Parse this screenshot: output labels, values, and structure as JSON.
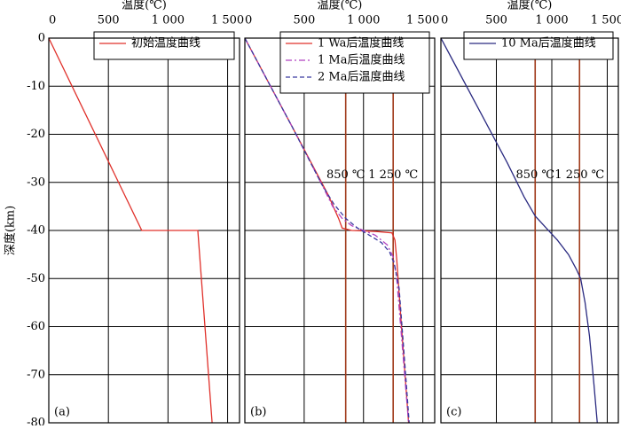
{
  "chart_data": [
    {
      "type": "line",
      "xlabel": "温度(℃)",
      "ylabel": "深度(km)",
      "panel_label": "(a)",
      "xlim": [
        0,
        1600
      ],
      "ylim": [
        -80,
        0
      ],
      "xticks": [
        0,
        500,
        {
          "value": 1000,
          "label": "1 000"
        },
        {
          "value": 1500,
          "label": "1 500"
        }
      ],
      "yticks": [
        0,
        -10,
        -20,
        -30,
        -40,
        -50,
        -60,
        -70,
        -80
      ],
      "grid": true,
      "legend": "top-right",
      "series": [
        {
          "name": "初始温度曲线",
          "color": "#e0302a",
          "dash": "solid",
          "x": [
            0,
            780,
            1250,
            1370
          ],
          "values": [
            0,
            -40,
            -40,
            -80
          ]
        }
      ]
    },
    {
      "type": "line",
      "xlabel": "温度(℃)",
      "panel_label": "(b)",
      "xlim": [
        0,
        1600
      ],
      "ylim": [
        -80,
        0
      ],
      "xticks": [
        0,
        500,
        {
          "value": 1000,
          "label": "1 000"
        },
        {
          "value": 1500,
          "label": "1 500"
        }
      ],
      "yticks": [
        0,
        -10,
        -20,
        -30,
        -40,
        -50,
        -60,
        -70,
        -80
      ],
      "grid": true,
      "legend": "top-right",
      "reference_lines": [
        {
          "value": 850,
          "label": "850 ℃"
        },
        {
          "value": 1250,
          "label": "1 250 ℃"
        }
      ],
      "series": [
        {
          "name": "1 Wa后温度曲线",
          "color": "#e0302a",
          "dash": "solid",
          "x": [
            0,
            400,
            700,
            790,
            820,
            900,
            1100,
            1240,
            1265,
            1280,
            1320,
            1380
          ],
          "values": [
            0,
            -18.5,
            -32.5,
            -37.5,
            -39.5,
            -40,
            -40.2,
            -40.5,
            -42,
            -46,
            -60,
            -80
          ]
        },
        {
          "name": "1 Ma后温度曲线",
          "color": "#b040c0",
          "dash": "dashdot",
          "x": [
            0,
            400,
            650,
            740,
            820,
            900,
            1000,
            1100,
            1200,
            1250,
            1280,
            1330,
            1380
          ],
          "values": [
            0,
            -18.5,
            -30.5,
            -35,
            -37.5,
            -39,
            -40,
            -41,
            -43,
            -45.5,
            -50,
            -65,
            -80
          ]
        },
        {
          "name": "2 Ma后温度曲线",
          "color": "#3a3aa0",
          "dash": "dashed",
          "x": [
            0,
            400,
            650,
            750,
            850,
            950,
            1050,
            1150,
            1220,
            1260,
            1300,
            1340,
            1385
          ],
          "values": [
            0,
            -18.5,
            -30.5,
            -34.5,
            -37.5,
            -39.5,
            -41,
            -42.5,
            -44.5,
            -47,
            -52,
            -65,
            -80
          ]
        }
      ]
    },
    {
      "type": "line",
      "xlabel": "温度(℃)",
      "panel_label": "(c)",
      "xlim": [
        0,
        1600
      ],
      "ylim": [
        -80,
        0
      ],
      "xticks": [
        0,
        500,
        {
          "value": 1000,
          "label": "1 000"
        },
        {
          "value": 1500,
          "label": "1 500"
        }
      ],
      "yticks": [
        0,
        -10,
        -20,
        -30,
        -40,
        -50,
        -60,
        -70,
        -80
      ],
      "grid": true,
      "legend": "top-right",
      "reference_lines": [
        {
          "value": 850,
          "label": "850 ℃"
        },
        {
          "value": 1250,
          "label": "1 250 ℃"
        }
      ],
      "series": [
        {
          "name": "10 Ma后温度曲线",
          "color": "#2a2a80",
          "dash": "solid",
          "x": [
            0,
            300,
            600,
            750,
            850,
            950,
            1050,
            1150,
            1220,
            1260,
            1300,
            1340,
            1380,
            1410
          ],
          "values": [
            0,
            -13,
            -26,
            -33,
            -37,
            -39.5,
            -42,
            -45,
            -48,
            -50,
            -55,
            -62,
            -72,
            -80
          ]
        }
      ]
    }
  ]
}
